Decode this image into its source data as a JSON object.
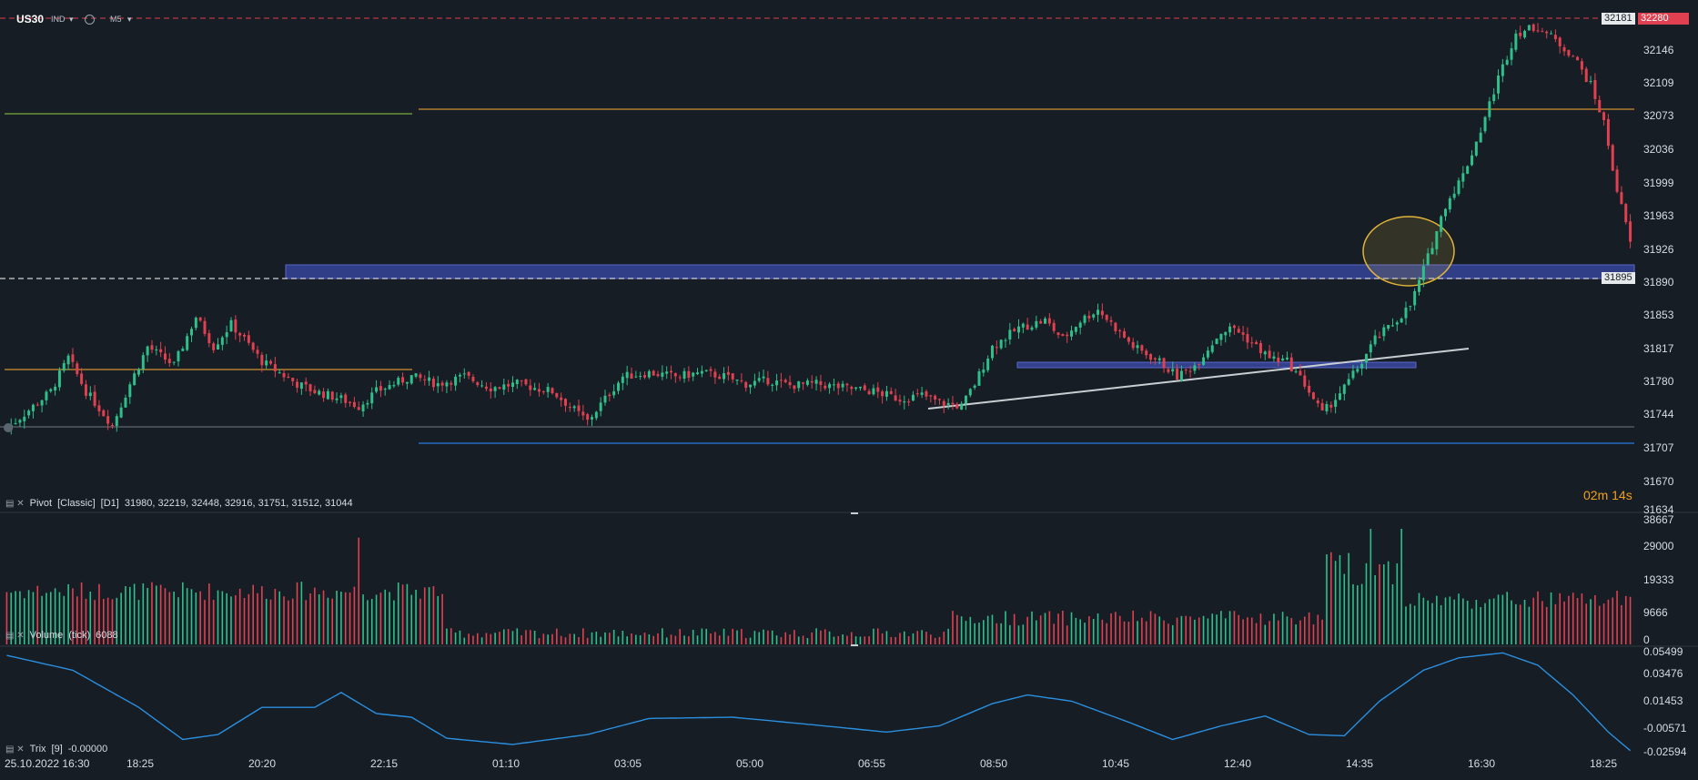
{
  "toolbar": {
    "symbol": "US30",
    "market": "IND",
    "timeframe": "M5"
  },
  "indicators": {
    "pivot": {
      "label": "Pivot",
      "type": "[Classic]",
      "period": "[D1]",
      "values": "31980,  32219,  32448,  32916,  31751,  31512,  31044"
    },
    "volume": {
      "label": "Volume",
      "type": "(tick)",
      "value": "6088"
    },
    "trix": {
      "label": "Trix",
      "period": "[9]",
      "value": "-0.00000"
    }
  },
  "countdown": {
    "minutes": "02",
    "m": "m",
    "seconds": "14",
    "s": "s"
  },
  "price_badges": {
    "top_line": "32181",
    "top_current": "32280",
    "mid_line": "31895"
  },
  "colors": {
    "bg": "#161d24",
    "up": "#2fbf8b",
    "down": "#e0404f",
    "zone": "#3a4aa8",
    "pivot_orange": "#d4912e",
    "pivot_green": "#7bab3a",
    "support_blue": "#2a7de0",
    "trix": "#2b8fe0",
    "trendline": "#c9ced3",
    "circle": "#e0b43a"
  },
  "x_axis": [
    "25.10.2022  16:30",
    "18:25",
    "20:20",
    "22:15",
    "01:10",
    "03:05",
    "05:00",
    "06:55",
    "08:50",
    "10:45",
    "12:40",
    "14:35",
    "16:30",
    "18:25"
  ],
  "price_axis": [
    "32280",
    "32146",
    "32109",
    "32073",
    "32036",
    "31999",
    "31963",
    "31926",
    "31890",
    "31853",
    "31817",
    "31780",
    "31744",
    "31707",
    "31670",
    "31634"
  ],
  "volume_axis": [
    "38667",
    "29000",
    "19333",
    "9666",
    "0"
  ],
  "trix_axis": [
    "0.05499",
    "0.03476",
    "0.01453",
    "-0.00571",
    "-0.02594"
  ],
  "chart_data": [
    {
      "type": "candlestick",
      "title": "US30 M5",
      "ylim": [
        31634,
        32290
      ],
      "close_path": [
        [
          0,
          31740
        ],
        [
          10,
          31790
        ],
        [
          14,
          31835
        ],
        [
          18,
          31790
        ],
        [
          22,
          31760
        ],
        [
          24,
          31745
        ],
        [
          28,
          31800
        ],
        [
          32,
          31850
        ],
        [
          38,
          31825
        ],
        [
          43,
          31890
        ],
        [
          47,
          31850
        ],
        [
          51,
          31880
        ],
        [
          54,
          31860
        ],
        [
          58,
          31830
        ],
        [
          62,
          31815
        ],
        [
          66,
          31800
        ],
        [
          70,
          31790
        ],
        [
          76,
          31780
        ],
        [
          80,
          31770
        ],
        [
          84,
          31790
        ],
        [
          88,
          31800
        ],
        [
          92,
          31810
        ],
        [
          98,
          31800
        ],
        [
          104,
          31810
        ],
        [
          110,
          31795
        ],
        [
          116,
          31800
        ],
        [
          124,
          31790
        ],
        [
          128,
          31770
        ],
        [
          132,
          31750
        ],
        [
          136,
          31780
        ],
        [
          140,
          31810
        ],
        [
          146,
          31815
        ],
        [
          152,
          31810
        ],
        [
          158,
          31815
        ],
        [
          163,
          31810
        ],
        [
          168,
          31800
        ],
        [
          173,
          31805
        ],
        [
          178,
          31798
        ],
        [
          184,
          31800
        ],
        [
          190,
          31795
        ],
        [
          197,
          31790
        ],
        [
          203,
          31780
        ],
        [
          208,
          31785
        ],
        [
          212,
          31775
        ],
        [
          217,
          31770
        ],
        [
          220,
          31800
        ],
        [
          224,
          31850
        ],
        [
          230,
          31875
        ],
        [
          236,
          31885
        ],
        [
          240,
          31860
        ],
        [
          244,
          31885
        ],
        [
          248,
          31900
        ],
        [
          252,
          31875
        ],
        [
          256,
          31850
        ],
        [
          262,
          31830
        ],
        [
          266,
          31810
        ],
        [
          270,
          31825
        ],
        [
          276,
          31870
        ],
        [
          279,
          31875
        ],
        [
          283,
          31855
        ],
        [
          287,
          31835
        ],
        [
          291,
          31830
        ],
        [
          295,
          31800
        ],
        [
          299,
          31760
        ],
        [
          304,
          31795
        ],
        [
          308,
          31830
        ],
        [
          311,
          31860
        ],
        [
          315,
          31880
        ],
        [
          319,
          31905
        ],
        [
          323,
          31970
        ],
        [
          327,
          32040
        ],
        [
          331,
          32080
        ],
        [
          335,
          32140
        ],
        [
          339,
          32210
        ],
        [
          343,
          32270
        ],
        [
          348,
          32279
        ],
        [
          352,
          32260
        ],
        [
          356,
          32240
        ],
        [
          360,
          32200
        ],
        [
          363,
          32150
        ],
        [
          366,
          32060
        ],
        [
          369,
          31990
        ]
      ],
      "volume_level": "low overnight, high after 14:35",
      "trix_path": [
        [
          0,
          0.052
        ],
        [
          15,
          0.04
        ],
        [
          30,
          0.01
        ],
        [
          40,
          -0.016
        ],
        [
          48,
          -0.012
        ],
        [
          58,
          0.01
        ],
        [
          70,
          0.01
        ],
        [
          76,
          0.022
        ],
        [
          84,
          0.005
        ],
        [
          92,
          0.002
        ],
        [
          100,
          -0.015
        ],
        [
          115,
          -0.02
        ],
        [
          132,
          -0.012
        ],
        [
          146,
          0.001
        ],
        [
          165,
          0.002
        ],
        [
          180,
          -0.003
        ],
        [
          200,
          -0.01
        ],
        [
          212,
          -0.005
        ],
        [
          224,
          0.013
        ],
        [
          232,
          0.02
        ],
        [
          242,
          0.015
        ],
        [
          255,
          -0.002
        ],
        [
          265,
          -0.016
        ],
        [
          276,
          -0.005
        ],
        [
          286,
          0.003
        ],
        [
          296,
          -0.012
        ],
        [
          304,
          -0.013
        ],
        [
          312,
          0.015
        ],
        [
          322,
          0.04
        ],
        [
          330,
          0.05
        ],
        [
          340,
          0.054
        ],
        [
          348,
          0.044
        ],
        [
          356,
          0.02
        ],
        [
          364,
          -0.01
        ],
        [
          369,
          -0.025
        ]
      ]
    }
  ]
}
